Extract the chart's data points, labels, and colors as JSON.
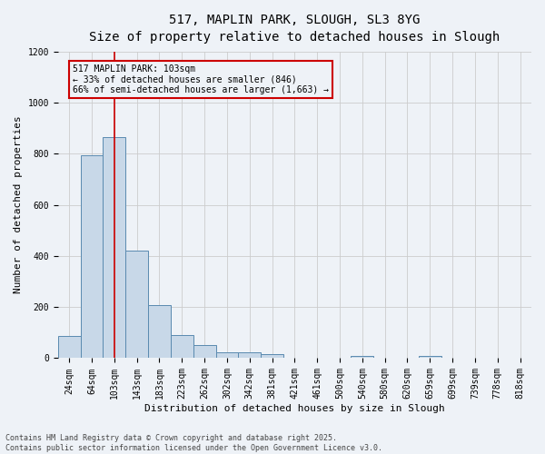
{
  "title_line1": "517, MAPLIN PARK, SLOUGH, SL3 8YG",
  "title_line2": "Size of property relative to detached houses in Slough",
  "xlabel": "Distribution of detached houses by size in Slough",
  "ylabel": "Number of detached properties",
  "categories": [
    "24sqm",
    "64sqm",
    "103sqm",
    "143sqm",
    "183sqm",
    "223sqm",
    "262sqm",
    "302sqm",
    "342sqm",
    "381sqm",
    "421sqm",
    "461sqm",
    "500sqm",
    "540sqm",
    "580sqm",
    "620sqm",
    "659sqm",
    "699sqm",
    "739sqm",
    "778sqm",
    "818sqm"
  ],
  "values": [
    88,
    793,
    866,
    422,
    207,
    90,
    53,
    22,
    22,
    15,
    0,
    0,
    0,
    8,
    0,
    0,
    8,
    0,
    0,
    0,
    0
  ],
  "bar_color": "#c8d8e8",
  "bar_edge_color": "#5a8ab0",
  "grid_color": "#cccccc",
  "background_color": "#eef2f7",
  "annotation_box_color": "#cc0000",
  "vline_x_index": 2,
  "annotation_text": "517 MAPLIN PARK: 103sqm\n← 33% of detached houses are smaller (846)\n66% of semi-detached houses are larger (1,663) →",
  "annotation_fontsize": 7,
  "footer_line1": "Contains HM Land Registry data © Crown copyright and database right 2025.",
  "footer_line2": "Contains public sector information licensed under the Open Government Licence v3.0.",
  "ylim": [
    0,
    1200
  ],
  "yticks": [
    0,
    200,
    400,
    600,
    800,
    1000,
    1200
  ],
  "title_fontsize": 10,
  "subtitle_fontsize": 9,
  "xlabel_fontsize": 8,
  "ylabel_fontsize": 8,
  "tick_fontsize": 7,
  "footer_fontsize": 6
}
